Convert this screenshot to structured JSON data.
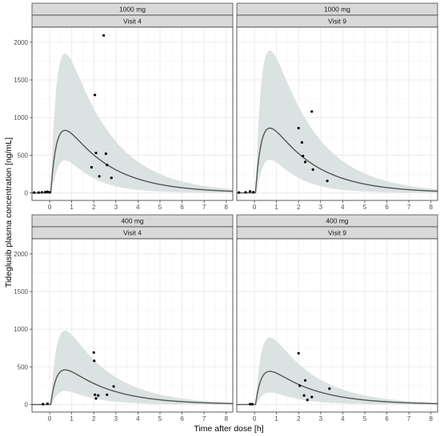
{
  "colors": {
    "band_fill": "#dbe2e2",
    "curve": "#545454",
    "points": "#000000",
    "grid_major": "#ebebeb",
    "grid_minor": "#f5f5f5",
    "strip_fill": "#d9d9d9",
    "panel_border": "#333333"
  },
  "chart_data": {
    "type": "scatter",
    "xlabel": "Time after dose [h]",
    "ylabel": "Tideglusib plasma concentration [ng/mL]",
    "xlim": [
      -0.8,
      8.3
    ],
    "ylim": [
      -100,
      2200
    ],
    "x_ticks": [
      0,
      1,
      2,
      3,
      4,
      5,
      6,
      7,
      8
    ],
    "y_ticks": [
      0,
      500,
      1000,
      1500,
      2000
    ],
    "grid": true,
    "legend": "none",
    "panels": [
      {
        "dose": "1000 mg",
        "visit": "Visit 4",
        "curve_peak": 830,
        "band_upper_peak": 1850,
        "band_lower_peak": 430,
        "observations": [
          {
            "x": -0.7,
            "y": 5
          },
          {
            "x": -0.5,
            "y": 5
          },
          {
            "x": -0.35,
            "y": 8
          },
          {
            "x": -0.2,
            "y": 10
          },
          {
            "x": -0.1,
            "y": 15
          },
          {
            "x": 0.0,
            "y": 8
          },
          {
            "x": 1.9,
            "y": 340
          },
          {
            "x": 2.05,
            "y": 1300
          },
          {
            "x": 2.1,
            "y": 530
          },
          {
            "x": 2.25,
            "y": 220
          },
          {
            "x": 2.45,
            "y": 2090
          },
          {
            "x": 2.55,
            "y": 520
          },
          {
            "x": 2.6,
            "y": 370
          },
          {
            "x": 2.8,
            "y": 200
          }
        ]
      },
      {
        "dose": "1000 mg",
        "visit": "Visit 9",
        "curve_peak": 860,
        "band_upper_peak": 1890,
        "band_lower_peak": 440,
        "observations": [
          {
            "x": -0.7,
            "y": 5
          },
          {
            "x": -0.4,
            "y": 8
          },
          {
            "x": -0.2,
            "y": 20
          },
          {
            "x": -0.05,
            "y": 10
          },
          {
            "x": 2.0,
            "y": 860
          },
          {
            "x": 2.15,
            "y": 670
          },
          {
            "x": 2.2,
            "y": 490
          },
          {
            "x": 2.3,
            "y": 410
          },
          {
            "x": 2.6,
            "y": 1080
          },
          {
            "x": 2.65,
            "y": 310
          },
          {
            "x": 3.3,
            "y": 160
          }
        ]
      },
      {
        "dose": "400 mg",
        "visit": "Visit 4",
        "curve_peak": 460,
        "band_upper_peak": 980,
        "band_lower_peak": 180,
        "observations": [
          {
            "x": -0.3,
            "y": 5
          },
          {
            "x": -0.1,
            "y": 10
          },
          {
            "x": 2.0,
            "y": 690
          },
          {
            "x": 2.02,
            "y": 580
          },
          {
            "x": 2.05,
            "y": 130
          },
          {
            "x": 2.1,
            "y": 80
          },
          {
            "x": 2.2,
            "y": 120
          },
          {
            "x": 2.6,
            "y": 130
          },
          {
            "x": 2.9,
            "y": 240
          }
        ]
      },
      {
        "dose": "400 mg",
        "visit": "Visit 9",
        "curve_peak": 440,
        "band_upper_peak": 890,
        "band_lower_peak": 160,
        "observations": [
          {
            "x": -0.2,
            "y": 5
          },
          {
            "x": -0.1,
            "y": 5
          },
          {
            "x": 2.0,
            "y": 680
          },
          {
            "x": 2.05,
            "y": 250
          },
          {
            "x": 2.25,
            "y": 120
          },
          {
            "x": 2.3,
            "y": 320
          },
          {
            "x": 2.4,
            "y": 60
          },
          {
            "x": 2.6,
            "y": 100
          },
          {
            "x": 3.4,
            "y": 210
          }
        ]
      }
    ]
  }
}
